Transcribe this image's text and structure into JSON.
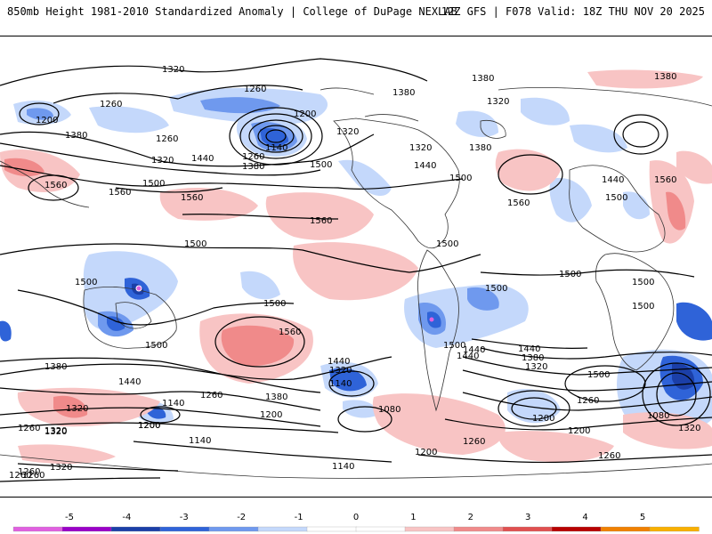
{
  "header": {
    "left_title": "850mb Height 1981-2010 Standardized Anomaly | College of DuPage NEXLAB",
    "right_title": "12Z GFS | F078 Valid: 18Z THU NOV 20 2025"
  },
  "colorbar": {
    "ticks": [
      "-5",
      "-4",
      "-3",
      "-2",
      "-1",
      "0",
      "1",
      "2",
      "3",
      "4",
      "5"
    ],
    "colors": [
      "#e060e0",
      "#9a00c8",
      "#1b3fa8",
      "#2f63d8",
      "#6f99ee",
      "#c4d8fb",
      "#ffffff",
      "#ffffff",
      "#f8c4c4",
      "#f08a8a",
      "#e05050",
      "#b80000",
      "#f08000",
      "#f8b000"
    ]
  },
  "contour_labels": [
    {
      "text": "1320",
      "name": "label-1320-a"
    },
    {
      "text": "1260",
      "name": "label-1260-a"
    },
    {
      "text": "1200",
      "name": "label-1200-a"
    },
    {
      "text": "1260",
      "name": "label-1260-b"
    },
    {
      "text": "1200",
      "name": "label-1200-b"
    },
    {
      "text": "1140",
      "name": "label-1140-a"
    },
    {
      "text": "1320",
      "name": "label-1320-b"
    },
    {
      "text": "1380",
      "name": "label-1380-a"
    },
    {
      "text": "1320",
      "name": "label-1320-c"
    },
    {
      "text": "1260",
      "name": "label-1260-c"
    },
    {
      "text": "1440",
      "name": "label-1440-a"
    },
    {
      "text": "1260",
      "name": "label-1260-d"
    },
    {
      "text": "1380",
      "name": "label-1380-b"
    },
    {
      "text": "1500",
      "name": "label-1500-a"
    },
    {
      "text": "1560",
      "name": "label-1560-a"
    },
    {
      "text": "1560",
      "name": "label-1560-b"
    },
    {
      "text": "1500",
      "name": "label-1500-b"
    },
    {
      "text": "1560",
      "name": "label-1560-c"
    },
    {
      "text": "1560",
      "name": "label-1560-d"
    },
    {
      "text": "1500",
      "name": "label-1500-c"
    },
    {
      "text": "1380",
      "name": "label-1380-c"
    },
    {
      "text": "1320",
      "name": "label-1320-d"
    },
    {
      "text": "1380",
      "name": "label-1380-d"
    },
    {
      "text": "1320",
      "name": "label-1320-e"
    },
    {
      "text": "1380",
      "name": "label-1380-e"
    },
    {
      "text": "1440",
      "name": "label-1440-b"
    },
    {
      "text": "1500",
      "name": "label-1500-d"
    },
    {
      "text": "1560",
      "name": "label-1560-e"
    },
    {
      "text": "1440",
      "name": "label-1440-c"
    },
    {
      "text": "1500",
      "name": "label-1500-e"
    },
    {
      "text": "1380",
      "name": "label-1380-f"
    },
    {
      "text": "1560",
      "name": "label-1560-f"
    },
    {
      "text": "1500",
      "name": "label-1500-f"
    },
    {
      "text": "1500",
      "name": "label-1500-g"
    },
    {
      "text": "1500",
      "name": "label-1500-h"
    },
    {
      "text": "1500",
      "name": "label-1500-i"
    },
    {
      "text": "1500",
      "name": "label-1500-j"
    },
    {
      "text": "1560",
      "name": "label-1560-g"
    },
    {
      "text": "1500",
      "name": "label-1500-k"
    },
    {
      "text": "1500",
      "name": "label-1500-l"
    },
    {
      "text": "1500",
      "name": "label-1500-m"
    },
    {
      "text": "1440",
      "name": "label-1440-d"
    },
    {
      "text": "1380",
      "name": "label-1380-g"
    },
    {
      "text": "1320",
      "name": "label-1320-f"
    },
    {
      "text": "1440",
      "name": "label-1440-e"
    },
    {
      "text": "1500",
      "name": "label-1500-n"
    },
    {
      "text": "1380",
      "name": "label-1380-h"
    },
    {
      "text": "1440",
      "name": "label-1440-f"
    },
    {
      "text": "1260",
      "name": "label-1260-e"
    },
    {
      "text": "1320",
      "name": "label-1320-g"
    },
    {
      "text": "1320",
      "name": "label-1320-h"
    },
    {
      "text": "1260",
      "name": "label-1260-f"
    },
    {
      "text": "1200",
      "name": "label-1200-c"
    },
    {
      "text": "1380",
      "name": "label-1380-i"
    },
    {
      "text": "1440",
      "name": "label-1440-g"
    },
    {
      "text": "1320",
      "name": "label-1320-i"
    },
    {
      "text": "1140",
      "name": "label-1140-b"
    },
    {
      "text": "1200",
      "name": "label-1200-d"
    },
    {
      "text": "1140",
      "name": "label-1140-c"
    },
    {
      "text": "1080",
      "name": "label-1080-a"
    },
    {
      "text": "1200",
      "name": "label-1200-e"
    },
    {
      "text": "1260",
      "name": "label-1260-g"
    },
    {
      "text": "1200",
      "name": "label-1200-f"
    },
    {
      "text": "1140",
      "name": "label-1140-d"
    },
    {
      "text": "1320",
      "name": "label-1320-j"
    },
    {
      "text": "1260",
      "name": "label-1260-h"
    },
    {
      "text": "1320",
      "name": "label-1320-k"
    },
    {
      "text": "1080",
      "name": "label-1080-b"
    },
    {
      "text": "1200",
      "name": "label-1200-g"
    },
    {
      "text": "1260",
      "name": "label-1260-i"
    },
    {
      "text": "1200",
      "name": "label-1200-h"
    },
    {
      "text": "1260",
      "name": "label-1260-j"
    },
    {
      "text": "1140",
      "name": "label-1140-e"
    },
    {
      "text": "1260",
      "name": "label-1260-k"
    },
    {
      "text": "1320",
      "name": "label-1320-l"
    },
    {
      "text": "1260",
      "name": "label-1260-l"
    },
    {
      "text": "1440",
      "name": "label-1440-h"
    },
    {
      "text": "1500",
      "name": "label-1500-o"
    }
  ]
}
